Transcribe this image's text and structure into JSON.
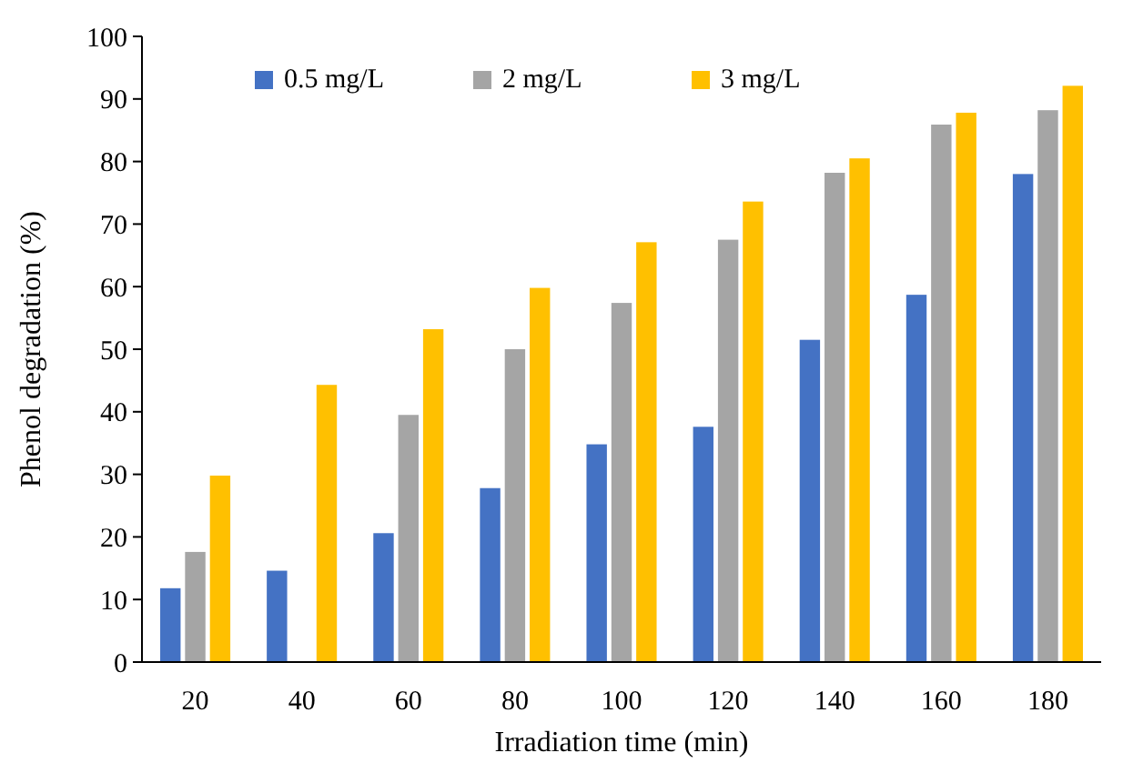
{
  "chart_data": {
    "type": "bar",
    "xlabel": "Irradiation time (min)",
    "ylabel": "Phenol degradation (%)",
    "categories": [
      "20",
      "40",
      "60",
      "80",
      "100",
      "120",
      "140",
      "160",
      "180"
    ],
    "series": [
      {
        "name": "0.5 mg/L",
        "color": "#4472c4",
        "values": [
          11.8,
          14.6,
          20.6,
          27.8,
          34.8,
          37.6,
          51.5,
          58.7,
          78
        ]
      },
      {
        "name": "2 mg/L",
        "color": "#a5a5a5",
        "values": [
          17.6,
          null,
          39.5,
          50,
          57.4,
          67.5,
          78.2,
          85.9,
          88.2
        ]
      },
      {
        "name": "3 mg/L",
        "color": "#ffc000",
        "values": [
          29.8,
          44.3,
          53.2,
          59.8,
          67.1,
          73.6,
          80.5,
          87.8,
          92.1
        ]
      }
    ],
    "ylim": [
      0,
      100
    ],
    "yticks": [
      0,
      10,
      20,
      30,
      40,
      50,
      60,
      70,
      80,
      90,
      100
    ],
    "legend": "top left"
  }
}
